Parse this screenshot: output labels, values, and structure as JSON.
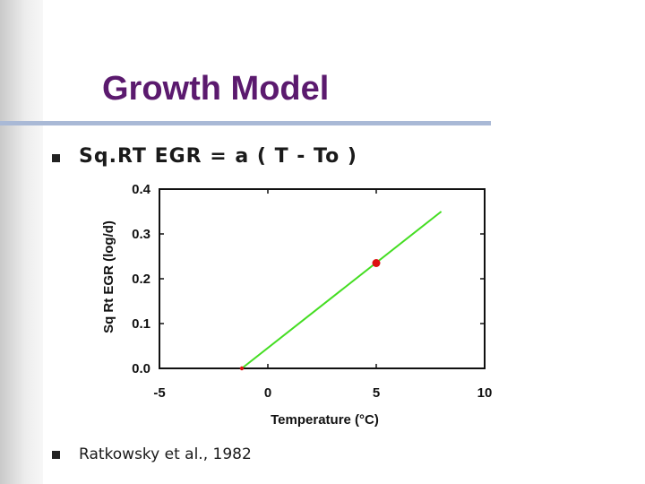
{
  "slide": {
    "title": "Growth Model",
    "bullets": [
      {
        "text": "Sq.RT  EGR  =  a ( T - To )"
      },
      {
        "text": "Ratkowsky et al., 1982"
      }
    ]
  },
  "colors": {
    "title": "#5b1a6e",
    "line": "#44dd22",
    "point": "#dd1111",
    "rule": "#a9b9d6"
  },
  "chart_data": {
    "type": "line",
    "xlabel": "Temperature (°C)",
    "ylabel": "Sq Rt EGR  (log/d)",
    "xlim": [
      -5,
      10
    ],
    "ylim": [
      0.0,
      0.4
    ],
    "xticks": [
      "-5",
      "0",
      "5",
      "10"
    ],
    "yticks": [
      "0.0",
      "0.1",
      "0.2",
      "0.3",
      "0.4"
    ],
    "grid": false,
    "series": [
      {
        "type": "line",
        "x": [
          -1.2,
          8.0
        ],
        "y": [
          0.0,
          0.35
        ]
      }
    ],
    "points": [
      {
        "x": 5.0,
        "y": 0.235
      },
      {
        "x": -1.2,
        "y": 0.0
      }
    ]
  }
}
